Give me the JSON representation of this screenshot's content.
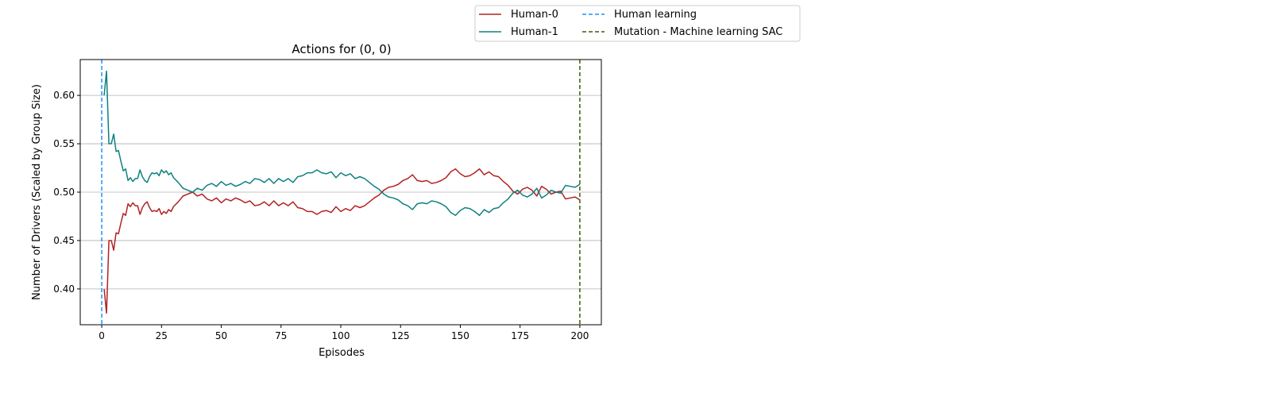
{
  "chart_data": {
    "type": "line",
    "title": "Actions for (0, 0)",
    "xlabel": "Episodes",
    "ylabel": "Number of Drivers (Scaled by Group Size)",
    "xlim": [
      -9,
      209
    ],
    "ylim": [
      0.363,
      0.637
    ],
    "xticks": [
      0,
      25,
      50,
      75,
      100,
      125,
      150,
      175,
      200
    ],
    "yticks": [
      0.4,
      0.45,
      0.5,
      0.55,
      0.6
    ],
    "ytick_labels": [
      "0.40",
      "0.45",
      "0.50",
      "0.55",
      "0.60"
    ],
    "grid": "y",
    "legend_position": "top-center-outside",
    "series": [
      {
        "name": "Human-0",
        "color": "#b22222",
        "style": "solid",
        "x": [
          1,
          2,
          3,
          4,
          5,
          6,
          7,
          8,
          9,
          10,
          11,
          12,
          13,
          14,
          15,
          16,
          17,
          18,
          19,
          20,
          21,
          22,
          23,
          24,
          25,
          26,
          27,
          28,
          29,
          30,
          32,
          34,
          36,
          38,
          40,
          42,
          44,
          46,
          48,
          50,
          52,
          54,
          56,
          58,
          60,
          62,
          64,
          66,
          68,
          70,
          72,
          74,
          76,
          78,
          80,
          82,
          84,
          86,
          88,
          90,
          92,
          94,
          96,
          98,
          100,
          102,
          104,
          106,
          108,
          110,
          112,
          114,
          116,
          118,
          120,
          122,
          124,
          126,
          128,
          130,
          132,
          134,
          136,
          138,
          140,
          142,
          144,
          146,
          148,
          150,
          152,
          154,
          156,
          158,
          160,
          162,
          164,
          166,
          168,
          170,
          172,
          174,
          176,
          178,
          180,
          182,
          184,
          186,
          188,
          190,
          192,
          194,
          196,
          198,
          200
        ],
        "y": [
          0.4,
          0.375,
          0.45,
          0.45,
          0.44,
          0.458,
          0.457,
          0.468,
          0.478,
          0.476,
          0.488,
          0.485,
          0.489,
          0.486,
          0.486,
          0.477,
          0.484,
          0.488,
          0.49,
          0.484,
          0.48,
          0.481,
          0.48,
          0.483,
          0.477,
          0.48,
          0.478,
          0.482,
          0.48,
          0.485,
          0.49,
          0.496,
          0.498,
          0.5,
          0.496,
          0.498,
          0.493,
          0.491,
          0.494,
          0.489,
          0.493,
          0.491,
          0.494,
          0.492,
          0.489,
          0.491,
          0.486,
          0.487,
          0.49,
          0.486,
          0.491,
          0.486,
          0.489,
          0.486,
          0.49,
          0.484,
          0.483,
          0.48,
          0.48,
          0.477,
          0.48,
          0.481,
          0.479,
          0.485,
          0.48,
          0.483,
          0.481,
          0.486,
          0.484,
          0.486,
          0.49,
          0.494,
          0.497,
          0.502,
          0.505,
          0.506,
          0.508,
          0.512,
          0.514,
          0.518,
          0.512,
          0.511,
          0.512,
          0.509,
          0.51,
          0.512,
          0.515,
          0.521,
          0.524,
          0.519,
          0.516,
          0.517,
          0.52,
          0.524,
          0.518,
          0.521,
          0.517,
          0.516,
          0.511,
          0.507,
          0.501,
          0.498,
          0.503,
          0.505,
          0.502,
          0.496,
          0.506,
          0.503,
          0.498,
          0.5,
          0.501,
          0.493,
          0.494,
          0.495,
          0.492
        ]
      },
      {
        "name": "Human-1",
        "color": "#0e8080",
        "style": "solid",
        "x": [
          1,
          2,
          3,
          4,
          5,
          6,
          7,
          8,
          9,
          10,
          11,
          12,
          13,
          14,
          15,
          16,
          17,
          18,
          19,
          20,
          21,
          22,
          23,
          24,
          25,
          26,
          27,
          28,
          29,
          30,
          32,
          34,
          36,
          38,
          40,
          42,
          44,
          46,
          48,
          50,
          52,
          54,
          56,
          58,
          60,
          62,
          64,
          66,
          68,
          70,
          72,
          74,
          76,
          78,
          80,
          82,
          84,
          86,
          88,
          90,
          92,
          94,
          96,
          98,
          100,
          102,
          104,
          106,
          108,
          110,
          112,
          114,
          116,
          118,
          120,
          122,
          124,
          126,
          128,
          130,
          132,
          134,
          136,
          138,
          140,
          142,
          144,
          146,
          148,
          150,
          152,
          154,
          156,
          158,
          160,
          162,
          164,
          166,
          168,
          170,
          172,
          174,
          176,
          178,
          180,
          182,
          184,
          186,
          188,
          190,
          192,
          194,
          196,
          198,
          200
        ],
        "y": [
          0.6,
          0.625,
          0.55,
          0.55,
          0.56,
          0.542,
          0.543,
          0.532,
          0.522,
          0.524,
          0.512,
          0.515,
          0.511,
          0.514,
          0.514,
          0.523,
          0.516,
          0.512,
          0.51,
          0.516,
          0.52,
          0.519,
          0.52,
          0.517,
          0.523,
          0.52,
          0.522,
          0.518,
          0.52,
          0.515,
          0.51,
          0.504,
          0.502,
          0.5,
          0.504,
          0.502,
          0.507,
          0.509,
          0.506,
          0.511,
          0.507,
          0.509,
          0.506,
          0.508,
          0.511,
          0.509,
          0.514,
          0.513,
          0.51,
          0.514,
          0.509,
          0.514,
          0.511,
          0.514,
          0.51,
          0.516,
          0.517,
          0.52,
          0.52,
          0.523,
          0.52,
          0.519,
          0.521,
          0.515,
          0.52,
          0.517,
          0.519,
          0.514,
          0.516,
          0.514,
          0.51,
          0.506,
          0.503,
          0.498,
          0.495,
          0.494,
          0.492,
          0.488,
          0.486,
          0.482,
          0.488,
          0.489,
          0.488,
          0.491,
          0.49,
          0.488,
          0.485,
          0.479,
          0.476,
          0.481,
          0.484,
          0.483,
          0.48,
          0.476,
          0.482,
          0.479,
          0.483,
          0.484,
          0.489,
          0.493,
          0.499,
          0.502,
          0.497,
          0.495,
          0.498,
          0.504,
          0.494,
          0.497,
          0.502,
          0.5,
          0.499,
          0.507,
          0.506,
          0.505,
          0.508
        ]
      },
      {
        "name": "Human learning",
        "color": "#1e90ff",
        "style": "dashed",
        "vline_x": 0
      },
      {
        "name": "Mutation - Machine learning SAC",
        "color": "#3a5f0b",
        "style": "dashed",
        "vline_x": 200
      }
    ]
  }
}
